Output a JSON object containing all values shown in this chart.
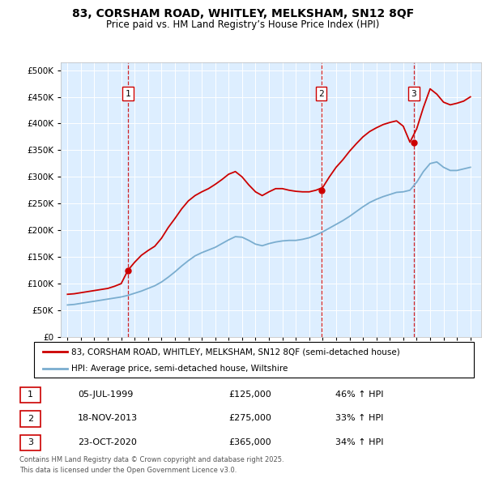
{
  "title": "83, CORSHAM ROAD, WHITLEY, MELKSHAM, SN12 8QF",
  "subtitle": "Price paid vs. HM Land Registry’s House Price Index (HPI)",
  "legend_line1": "83, CORSHAM ROAD, WHITLEY, MELKSHAM, SN12 8QF (semi-detached house)",
  "legend_line2": "HPI: Average price, semi-detached house, Wiltshire",
  "footnote1": "Contains HM Land Registry data © Crown copyright and database right 2025.",
  "footnote2": "This data is licensed under the Open Government Licence v3.0.",
  "sales": [
    {
      "num": 1,
      "date": "05-JUL-1999",
      "price": "£125,000",
      "change": "46% ↑ HPI",
      "year": 1999.5
    },
    {
      "num": 2,
      "date": "18-NOV-2013",
      "price": "£275,000",
      "change": "33% ↑ HPI",
      "year": 2013.9
    },
    {
      "num": 3,
      "date": "23-OCT-2020",
      "price": "£365,000",
      "change": "34% ↑ HPI",
      "year": 2020.8
    }
  ],
  "red_color": "#cc0000",
  "blue_color": "#7aadcf",
  "plot_bg": "#ddeeff",
  "ylabel_vals": [
    0,
    50000,
    100000,
    150000,
    200000,
    250000,
    300000,
    350000,
    400000,
    450000,
    500000
  ],
  "xlim": [
    1994.5,
    2025.8
  ],
  "ylim": [
    0,
    515000
  ],
  "hpi_years": [
    1995.0,
    1995.5,
    1996.0,
    1996.5,
    1997.0,
    1997.5,
    1998.0,
    1998.5,
    1999.0,
    1999.5,
    2000.0,
    2000.5,
    2001.0,
    2001.5,
    2002.0,
    2002.5,
    2003.0,
    2003.5,
    2004.0,
    2004.5,
    2005.0,
    2005.5,
    2006.0,
    2006.5,
    2007.0,
    2007.5,
    2008.0,
    2008.5,
    2009.0,
    2009.5,
    2010.0,
    2010.5,
    2011.0,
    2011.5,
    2012.0,
    2012.5,
    2013.0,
    2013.5,
    2014.0,
    2014.5,
    2015.0,
    2015.5,
    2016.0,
    2016.5,
    2017.0,
    2017.5,
    2018.0,
    2018.5,
    2019.0,
    2019.5,
    2020.0,
    2020.5,
    2021.0,
    2021.5,
    2022.0,
    2022.5,
    2023.0,
    2023.5,
    2024.0,
    2024.5,
    2025.0
  ],
  "hpi_values": [
    60000,
    61000,
    63000,
    65000,
    67000,
    69000,
    71000,
    73000,
    75000,
    78000,
    82000,
    86000,
    91000,
    96000,
    103000,
    112000,
    122000,
    133000,
    143000,
    152000,
    158000,
    163000,
    168000,
    175000,
    182000,
    188000,
    187000,
    181000,
    174000,
    171000,
    175000,
    178000,
    180000,
    181000,
    181000,
    183000,
    186000,
    191000,
    197000,
    204000,
    211000,
    218000,
    226000,
    235000,
    244000,
    252000,
    258000,
    263000,
    267000,
    271000,
    272000,
    275000,
    290000,
    310000,
    325000,
    328000,
    318000,
    312000,
    312000,
    315000,
    318000
  ],
  "red_years": [
    1995.0,
    1995.5,
    1996.0,
    1996.5,
    1997.0,
    1997.5,
    1998.0,
    1998.5,
    1999.0,
    1999.5,
    2000.0,
    2000.5,
    2001.0,
    2001.5,
    2002.0,
    2002.5,
    2003.0,
    2003.5,
    2004.0,
    2004.5,
    2005.0,
    2005.5,
    2006.0,
    2006.5,
    2007.0,
    2007.5,
    2008.0,
    2008.5,
    2009.0,
    2009.5,
    2010.0,
    2010.5,
    2011.0,
    2011.5,
    2012.0,
    2012.5,
    2013.0,
    2013.5,
    2014.0,
    2014.5,
    2015.0,
    2015.5,
    2016.0,
    2016.5,
    2017.0,
    2017.5,
    2018.0,
    2018.5,
    2019.0,
    2019.5,
    2020.0,
    2020.5,
    2021.0,
    2021.5,
    2022.0,
    2022.5,
    2023.0,
    2023.5,
    2024.0,
    2024.5,
    2025.0
  ],
  "red_values": [
    80000,
    81000,
    83000,
    85000,
    87000,
    89000,
    91000,
    95000,
    100000,
    125000,
    140000,
    153000,
    162000,
    170000,
    185000,
    205000,
    222000,
    240000,
    255000,
    265000,
    272000,
    278000,
    286000,
    295000,
    305000,
    310000,
    300000,
    285000,
    272000,
    265000,
    272000,
    278000,
    278000,
    275000,
    273000,
    272000,
    272000,
    275000,
    280000,
    300000,
    318000,
    332000,
    348000,
    362000,
    375000,
    385000,
    392000,
    398000,
    402000,
    405000,
    395000,
    365000,
    390000,
    430000,
    465000,
    455000,
    440000,
    435000,
    438000,
    442000,
    450000
  ]
}
